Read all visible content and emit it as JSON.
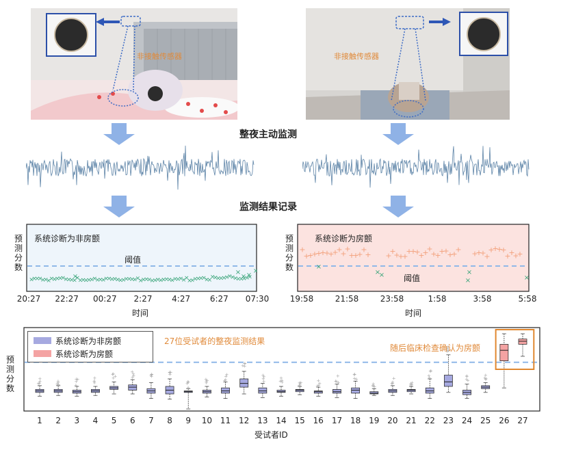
{
  "top": {
    "left_photo_label": "非接触传感器",
    "right_photo_label": "非接触传感器",
    "overnight_label": "整夜主动监测",
    "record_label": "监测结果记录"
  },
  "panel_left": {
    "title": "系统诊断为非房颤",
    "threshold_label": "阈值",
    "ylabel": [
      "预",
      "测",
      "分",
      "数"
    ],
    "xticks": [
      "20:27",
      "22:27",
      "00:27",
      "2:27",
      "4:27",
      "6:27",
      "07:30"
    ],
    "xlabel": "时间"
  },
  "panel_right": {
    "title": "系统诊断为房颤",
    "threshold_label": "阈值",
    "ylabel": [
      "预",
      "测",
      "分",
      "数"
    ],
    "xticks": [
      "19:58",
      "21:58",
      "23:58",
      "1:58",
      "3:58",
      "5:58"
    ],
    "xlabel": "时间"
  },
  "colors": {
    "waveform": "#5b82a6",
    "arrow": "#8fb2e6",
    "threshold": "#8fb8e8",
    "green": "#3aa57a",
    "salmon": "#f2a07b",
    "box_blue": "#a6a9e0",
    "box_red": "#f4a3a3",
    "orange": "#e0872f"
  },
  "chart_data": {
    "type": "box",
    "legend": [
      "系统诊断为非房颤",
      "系统诊断为房颤"
    ],
    "annotation": "27位受试者的整夜监测结果",
    "highlight_note": "随后临床检查确认为房颤",
    "xlabel": "受试者ID",
    "ylabel": [
      "预",
      "测",
      "分",
      "数"
    ],
    "categories": [
      "1",
      "2",
      "3",
      "4",
      "5",
      "6",
      "7",
      "8",
      "9",
      "10",
      "11",
      "12",
      "13",
      "14",
      "15",
      "16",
      "17",
      "18",
      "19",
      "20",
      "21",
      "22",
      "23",
      "24",
      "25",
      "26",
      "27"
    ],
    "threshold": 0.62,
    "boxes": [
      {
        "q1": 0.22,
        "q3": 0.26,
        "med": 0.24,
        "lo": 0.17,
        "hi": 0.31,
        "cls": 0
      },
      {
        "q1": 0.22,
        "q3": 0.26,
        "med": 0.24,
        "lo": 0.18,
        "hi": 0.31,
        "cls": 0
      },
      {
        "q1": 0.21,
        "q3": 0.25,
        "med": 0.23,
        "lo": 0.17,
        "hi": 0.3,
        "cls": 0
      },
      {
        "q1": 0.22,
        "q3": 0.26,
        "med": 0.24,
        "lo": 0.18,
        "hi": 0.3,
        "cls": 0
      },
      {
        "q1": 0.26,
        "q3": 0.3,
        "med": 0.28,
        "lo": 0.2,
        "hi": 0.36,
        "cls": 0
      },
      {
        "q1": 0.25,
        "q3": 0.32,
        "med": 0.29,
        "lo": 0.2,
        "hi": 0.39,
        "cls": 0
      },
      {
        "q1": 0.21,
        "q3": 0.27,
        "med": 0.24,
        "lo": 0.14,
        "hi": 0.35,
        "cls": 0
      },
      {
        "q1": 0.2,
        "q3": 0.3,
        "med": 0.25,
        "lo": 0.13,
        "hi": 0.4,
        "cls": 0
      },
      {
        "q1": 0.22,
        "q3": 0.24,
        "med": 0.23,
        "lo": 0.0,
        "hi": 0.27,
        "cls": 0
      },
      {
        "q1": 0.21,
        "q3": 0.25,
        "med": 0.23,
        "lo": 0.16,
        "hi": 0.3,
        "cls": 0
      },
      {
        "q1": 0.21,
        "q3": 0.28,
        "med": 0.24,
        "lo": 0.14,
        "hi": 0.36,
        "cls": 0
      },
      {
        "q1": 0.29,
        "q3": 0.4,
        "med": 0.34,
        "lo": 0.2,
        "hi": 0.5,
        "cls": 0
      },
      {
        "q1": 0.21,
        "q3": 0.28,
        "med": 0.24,
        "lo": 0.15,
        "hi": 0.34,
        "cls": 0
      },
      {
        "q1": 0.22,
        "q3": 0.25,
        "med": 0.23,
        "lo": 0.17,
        "hi": 0.3,
        "cls": 0
      },
      {
        "q1": 0.23,
        "q3": 0.26,
        "med": 0.25,
        "lo": 0.19,
        "hi": 0.3,
        "cls": 0
      },
      {
        "q1": 0.21,
        "q3": 0.24,
        "med": 0.23,
        "lo": 0.17,
        "hi": 0.29,
        "cls": 0
      },
      {
        "q1": 0.21,
        "q3": 0.26,
        "med": 0.23,
        "lo": 0.15,
        "hi": 0.33,
        "cls": 0
      },
      {
        "q1": 0.21,
        "q3": 0.28,
        "med": 0.25,
        "lo": 0.14,
        "hi": 0.37,
        "cls": 0
      },
      {
        "q1": 0.2,
        "q3": 0.23,
        "med": 0.21,
        "lo": 0.18,
        "hi": 0.27,
        "cls": 0
      },
      {
        "q1": 0.22,
        "q3": 0.26,
        "med": 0.24,
        "lo": 0.18,
        "hi": 0.31,
        "cls": 0
      },
      {
        "q1": 0.23,
        "q3": 0.26,
        "med": 0.25,
        "lo": 0.2,
        "hi": 0.3,
        "cls": 0
      },
      {
        "q1": 0.21,
        "q3": 0.28,
        "med": 0.24,
        "lo": 0.14,
        "hi": 0.4,
        "cls": 0
      },
      {
        "q1": 0.3,
        "q3": 0.45,
        "med": 0.36,
        "lo": 0.22,
        "hi": 0.72,
        "cls": 0
      },
      {
        "q1": 0.19,
        "q3": 0.25,
        "med": 0.22,
        "lo": 0.14,
        "hi": 0.33,
        "cls": 0
      },
      {
        "q1": 0.27,
        "q3": 0.31,
        "med": 0.29,
        "lo": 0.22,
        "hi": 0.35,
        "cls": 0
      },
      {
        "q1": 0.64,
        "q3": 0.86,
        "med": 0.78,
        "lo": 0.28,
        "hi": 1.0,
        "cls": 1
      },
      {
        "q1": 0.86,
        "q3": 0.93,
        "med": 0.9,
        "lo": 0.7,
        "hi": 1.0,
        "cls": 1
      }
    ]
  }
}
